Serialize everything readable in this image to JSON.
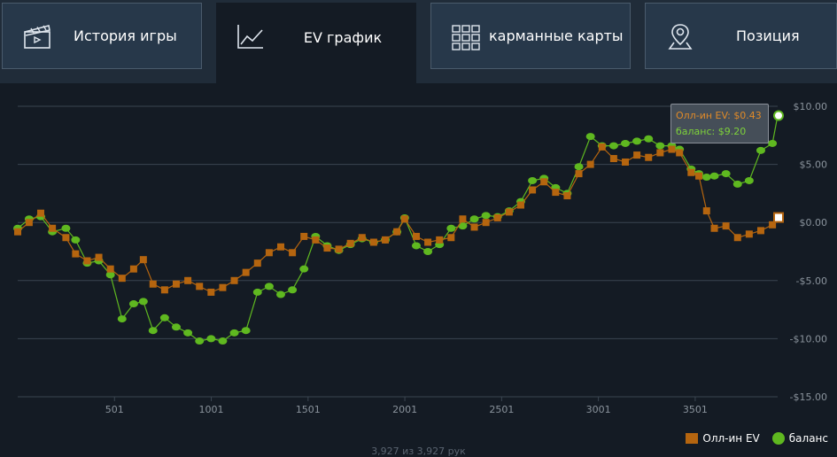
{
  "tabs": [
    {
      "label": "История игры",
      "icon": "clapperboard-icon",
      "active": false
    },
    {
      "label": "EV график",
      "icon": "line-chart-icon",
      "active": true
    },
    {
      "label": "карманные карты",
      "icon": "grid-icon",
      "active": false
    },
    {
      "label": "Позиция",
      "icon": "map-pin-icon",
      "active": false
    }
  ],
  "tooltip": {
    "ev_label": "Олл-ин EV:",
    "ev_value": "$0.43",
    "balance_label": "баланс:",
    "balance_value": "$9.20"
  },
  "legend": {
    "ev": "Олл-ин EV",
    "balance": "баланс"
  },
  "footer": "3,927 из 3,927 рук",
  "colors": {
    "ev": "#b5650f",
    "balance": "#5fb820",
    "grid": "#3a4550",
    "tick": "#8a939c"
  },
  "chart_data": {
    "type": "line",
    "xlim": [
      1,
      3927
    ],
    "ylim": [
      -15,
      10
    ],
    "x_ticks": [
      501,
      1001,
      1501,
      2001,
      2501,
      3001,
      3501
    ],
    "y_ticks": [
      10,
      5,
      0,
      -5,
      -10,
      -15
    ],
    "y_tick_labels": [
      "$10.00",
      "$5.00",
      "$0.00",
      "-$5.00",
      "-$10.00",
      "-$15.00"
    ],
    "series": [
      {
        "name": "Олл-ин EV",
        "x": [
          1,
          60,
          120,
          180,
          250,
          300,
          360,
          420,
          480,
          540,
          600,
          650,
          700,
          760,
          820,
          880,
          940,
          1000,
          1060,
          1120,
          1180,
          1240,
          1300,
          1360,
          1420,
          1480,
          1540,
          1600,
          1660,
          1720,
          1780,
          1840,
          1900,
          1960,
          2000,
          2060,
          2120,
          2180,
          2240,
          2300,
          2360,
          2420,
          2480,
          2540,
          2600,
          2660,
          2720,
          2780,
          2840,
          2900,
          2960,
          3020,
          3080,
          3140,
          3200,
          3260,
          3320,
          3380,
          3420,
          3480,
          3520,
          3560,
          3600,
          3660,
          3720,
          3780,
          3840,
          3900,
          3927
        ],
        "values": [
          -0.8,
          0.0,
          0.8,
          -0.5,
          -1.3,
          -2.7,
          -3.3,
          -3.0,
          -4.0,
          -4.8,
          -4.0,
          -3.2,
          -5.3,
          -5.8,
          -5.3,
          -5.0,
          -5.5,
          -6.0,
          -5.6,
          -5.0,
          -4.3,
          -3.5,
          -2.6,
          -2.1,
          -2.6,
          -1.2,
          -1.5,
          -2.2,
          -2.3,
          -1.8,
          -1.3,
          -1.7,
          -1.5,
          -0.8,
          0.3,
          -1.2,
          -1.7,
          -1.5,
          -1.3,
          0.3,
          -0.4,
          0.0,
          0.4,
          0.9,
          1.5,
          2.8,
          3.5,
          2.6,
          2.3,
          4.2,
          5.0,
          6.5,
          5.5,
          5.2,
          5.8,
          5.6,
          6.0,
          6.3,
          6.0,
          4.3,
          4.0,
          1.0,
          -0.5,
          -0.3,
          -1.3,
          -1.0,
          -0.7,
          -0.2,
          0.43
        ]
      },
      {
        "name": "баланс",
        "x": [
          1,
          60,
          120,
          180,
          250,
          300,
          360,
          420,
          480,
          540,
          600,
          650,
          700,
          760,
          820,
          880,
          940,
          1000,
          1060,
          1120,
          1180,
          1240,
          1300,
          1360,
          1420,
          1480,
          1540,
          1600,
          1660,
          1720,
          1780,
          1840,
          1900,
          1960,
          2000,
          2060,
          2120,
          2180,
          2240,
          2300,
          2360,
          2420,
          2480,
          2540,
          2600,
          2660,
          2720,
          2780,
          2840,
          2900,
          2960,
          3020,
          3080,
          3140,
          3200,
          3260,
          3320,
          3380,
          3420,
          3480,
          3520,
          3560,
          3600,
          3660,
          3720,
          3780,
          3840,
          3900,
          3927
        ],
        "values": [
          -0.5,
          0.3,
          0.5,
          -0.8,
          -0.5,
          -1.5,
          -3.5,
          -3.3,
          -4.5,
          -8.3,
          -7.0,
          -6.8,
          -9.3,
          -8.2,
          -9.0,
          -9.5,
          -10.2,
          -10.0,
          -10.2,
          -9.5,
          -9.3,
          -6.0,
          -5.5,
          -6.2,
          -5.8,
          -4.0,
          -1.2,
          -2.0,
          -2.4,
          -1.9,
          -1.4,
          -1.7,
          -1.5,
          -0.8,
          0.4,
          -2.0,
          -2.5,
          -1.9,
          -0.5,
          -0.3,
          0.3,
          0.6,
          0.5,
          1.0,
          1.8,
          3.6,
          3.8,
          3.0,
          2.5,
          4.8,
          7.4,
          6.6,
          6.6,
          6.8,
          7.0,
          7.2,
          6.6,
          6.6,
          6.3,
          4.6,
          4.2,
          3.9,
          4.0,
          4.2,
          3.3,
          3.6,
          6.2,
          6.8,
          9.2
        ]
      }
    ]
  }
}
